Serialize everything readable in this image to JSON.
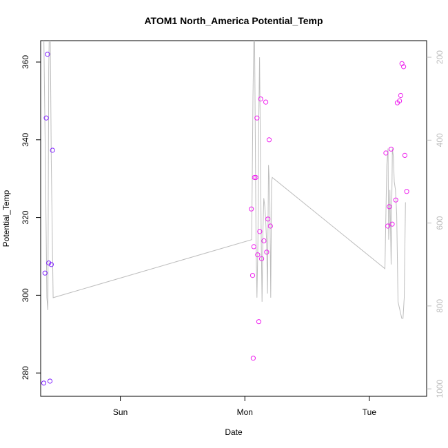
{
  "chart_data": {
    "type": "scatter",
    "title": "ATOM1 North_America Potential_Temp",
    "xlabel": "Date",
    "ylabel": "Potential_Temp",
    "x_ticks": [
      {
        "label": "Sun",
        "value": 0.5
      },
      {
        "label": "Mon",
        "value": 1.5
      },
      {
        "label": "Tue",
        "value": 2.5
      }
    ],
    "xlim": [
      -0.14,
      2.96
    ],
    "ylim": [
      274,
      365.5
    ],
    "y_ticks": [
      280,
      300,
      320,
      340,
      360
    ],
    "y2_ticks": [
      200,
      400,
      600,
      800,
      1000
    ],
    "y2lim": [
      1018,
      160
    ],
    "grid": false,
    "series": [
      {
        "kind": "points",
        "color": "#7f1fff",
        "points": [
          [
            -0.115,
            277.4
          ],
          [
            -0.105,
            305.7
          ],
          [
            -0.095,
            345.6
          ],
          [
            -0.085,
            362.0
          ],
          [
            -0.075,
            308.3
          ],
          [
            -0.065,
            277.9
          ],
          [
            -0.055,
            307.9
          ],
          [
            -0.045,
            337.3
          ]
        ]
      },
      {
        "kind": "points",
        "color": "#ee20ee",
        "points": [
          [
            1.552,
            322.2
          ],
          [
            1.562,
            305.1
          ],
          [
            1.567,
            283.8
          ],
          [
            1.572,
            312.5
          ],
          [
            1.578,
            330.3
          ],
          [
            1.588,
            330.3
          ],
          [
            1.597,
            345.6
          ],
          [
            1.603,
            310.4
          ],
          [
            1.612,
            293.2
          ],
          [
            1.62,
            316.4
          ],
          [
            1.627,
            350.5
          ],
          [
            1.635,
            309.4
          ],
          [
            1.653,
            314.0
          ],
          [
            1.668,
            349.7
          ],
          [
            1.675,
            311.1
          ],
          [
            1.685,
            319.6
          ],
          [
            1.695,
            340.0
          ],
          [
            1.705,
            317.8
          ],
          [
            2.633,
            336.6
          ],
          [
            2.648,
            317.8
          ],
          [
            2.66,
            322.8
          ],
          [
            2.675,
            337.6
          ],
          [
            2.683,
            318.3
          ],
          [
            2.712,
            324.5
          ],
          [
            2.725,
            349.5
          ],
          [
            2.742,
            350.0
          ],
          [
            2.752,
            351.4
          ],
          [
            2.762,
            359.6
          ],
          [
            2.775,
            358.8
          ],
          [
            2.785,
            336.0
          ],
          [
            2.8,
            326.7
          ]
        ]
      },
      {
        "kind": "line",
        "axis": "right",
        "color": "#bdbdbd",
        "points": [
          [
            -0.115,
            140
          ],
          [
            -0.1,
            500
          ],
          [
            -0.09,
            780
          ],
          [
            -0.082,
            810
          ],
          [
            -0.075,
            230
          ],
          [
            -0.07,
            130
          ],
          [
            -0.063,
            140
          ],
          [
            -0.055,
            450
          ],
          [
            -0.04,
            780
          ],
          [
            1.555,
            640
          ],
          [
            1.565,
            300
          ],
          [
            1.572,
            150
          ],
          [
            1.578,
            140
          ],
          [
            1.585,
            430
          ],
          [
            1.59,
            650
          ],
          [
            1.597,
            780
          ],
          [
            1.605,
            650
          ],
          [
            1.612,
            340
          ],
          [
            1.618,
            200
          ],
          [
            1.625,
            420
          ],
          [
            1.632,
            650
          ],
          [
            1.638,
            790
          ],
          [
            1.645,
            620
          ],
          [
            1.652,
            540
          ],
          [
            1.66,
            560
          ],
          [
            1.667,
            590
          ],
          [
            1.675,
            650
          ],
          [
            1.682,
            770
          ],
          [
            1.69,
            460
          ],
          [
            1.7,
            520
          ],
          [
            1.708,
            780
          ],
          [
            1.715,
            500
          ],
          [
            1.72,
            490
          ],
          [
            2.625,
            710
          ],
          [
            2.64,
            460
          ],
          [
            2.65,
            420
          ],
          [
            2.655,
            640
          ],
          [
            2.66,
            600
          ],
          [
            2.665,
            520
          ],
          [
            2.675,
            700
          ],
          [
            2.685,
            420
          ],
          [
            2.693,
            440
          ],
          [
            2.7,
            500
          ],
          [
            2.71,
            520
          ],
          [
            2.72,
            580
          ],
          [
            2.73,
            790
          ],
          [
            2.745,
            810
          ],
          [
            2.76,
            830
          ],
          [
            2.77,
            830
          ],
          [
            2.78,
            780
          ],
          [
            2.79,
            550
          ]
        ]
      }
    ]
  }
}
